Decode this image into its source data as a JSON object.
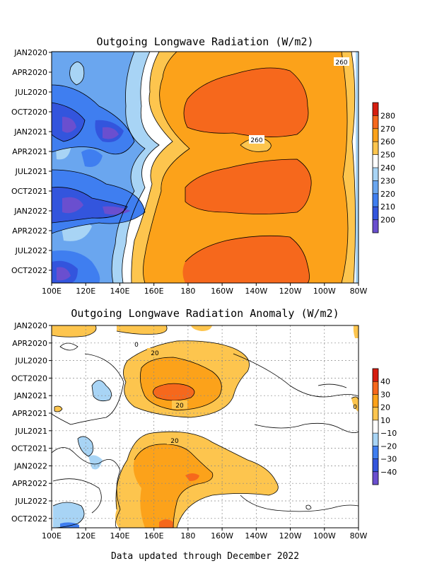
{
  "footer": "Data updated through December 2022",
  "chart_data": [
    {
      "type": "heatmap",
      "title": "Outgoing Longwave Radiation (W/m2)",
      "x_tick_labels": [
        "100E",
        "120E",
        "140E",
        "160E",
        "180",
        "160W",
        "140W",
        "120W",
        "100W",
        "80W"
      ],
      "y_tick_labels": [
        "JAN2020",
        "APR2020",
        "JUL2020",
        "OCT2020",
        "JAN2021",
        "APR2021",
        "JUL2021",
        "OCT2021",
        "JAN2022",
        "APR2022",
        "JUL2022",
        "OCT2022"
      ],
      "colorbar": {
        "levels": [
          200,
          210,
          220,
          230,
          240,
          250,
          260,
          270,
          280
        ],
        "labels": [
          "200",
          "210",
          "220",
          "230",
          "240",
          "250",
          "260",
          "270",
          "280"
        ],
        "colors": [
          "#6a4fcf",
          "#3355dd",
          "#3f7ef0",
          "#6aa6ef",
          "#a8d4f5",
          "#ffffff",
          "#fdc54e",
          "#fca21a",
          "#f6681c",
          "#d61d0f"
        ]
      },
      "contour_labels": [
        "260",
        "260"
      ],
      "grid": false
    },
    {
      "type": "heatmap",
      "title": "Outgoing Longwave Radiation Anomaly (W/m2)",
      "x_tick_labels": [
        "100E",
        "120E",
        "140E",
        "160E",
        "180",
        "160W",
        "140W",
        "120W",
        "100W",
        "80W"
      ],
      "y_tick_labels": [
        "JAN2020",
        "APR2020",
        "JUL2020",
        "OCT2020",
        "JAN2021",
        "APR2021",
        "JUL2021",
        "OCT2021",
        "JAN2022",
        "APR2022",
        "JUL2022",
        "OCT2022"
      ],
      "colorbar": {
        "levels": [
          -40,
          -30,
          -20,
          -10,
          10,
          20,
          30,
          40
        ],
        "labels": [
          "−40",
          "−30",
          "−20",
          "−10",
          "10",
          "20",
          "30",
          "40"
        ],
        "colors": [
          "#6a4fcf",
          "#3355dd",
          "#3f7ef0",
          "#a8d4f5",
          "#ffffff",
          "#fdc54e",
          "#fca21a",
          "#f6681c",
          "#d61d0f"
        ]
      },
      "contour_labels": [
        "20",
        "20",
        "20",
        "0",
        "0"
      ],
      "grid": true
    }
  ]
}
